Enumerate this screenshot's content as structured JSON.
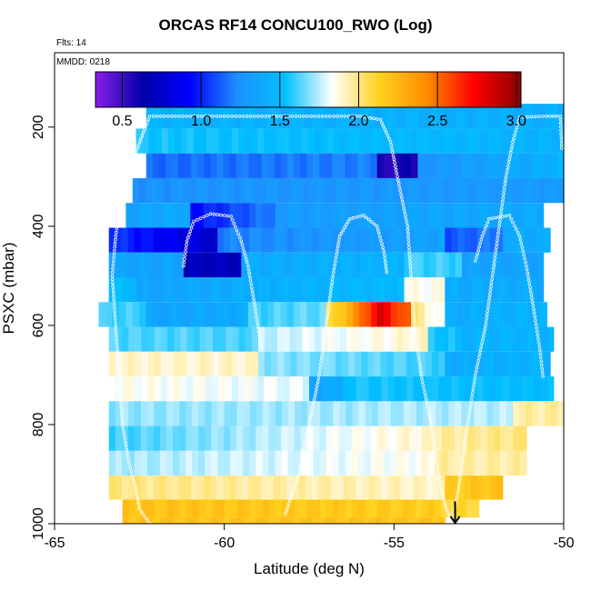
{
  "chart_data": {
    "type": "heatmap",
    "title": "ORCAS RF14 CONCU100_RWO (Log)",
    "flights_label": "Flts: 14",
    "date_label": "MMDD: 0218",
    "xlabel": "Latitude (deg N)",
    "ylabel": "PSXC (mbar)",
    "xlim": [
      -65,
      -50
    ],
    "ylim": [
      1000,
      50
    ],
    "x_ticks": [
      -65,
      -60,
      -55,
      -50
    ],
    "x_tick_labels": [
      "-65",
      "-60",
      "-55",
      "-50"
    ],
    "y_ticks": [
      200,
      400,
      600,
      800,
      1000
    ],
    "y_tick_labels": [
      "200",
      "400",
      "600",
      "800",
      "1000"
    ],
    "colorbar": {
      "range": [
        0.33,
        3.03
      ],
      "ticks": [
        0.5,
        1.0,
        1.5,
        2.0,
        2.5,
        3.0
      ],
      "tick_labels": [
        "0.5",
        "1.0",
        "1.5",
        "2.0",
        "2.5",
        "3.0"
      ],
      "colors": [
        "#8b1ee8",
        "#0000a8",
        "#0000ff",
        "#1e90ff",
        "#00bfff",
        "#ffffff",
        "#ffd21e",
        "#ff8c00",
        "#ff0000",
        "#8b0000"
      ]
    },
    "rows": [
      {
        "p": 178,
        "segments": [
          {
            "x": [
              -62.3,
              -50
            ],
            "v": [
              1.45,
              1.42
            ]
          }
        ]
      },
      {
        "p": 228,
        "segments": [
          {
            "x": [
              -62.6,
              -50
            ],
            "v": [
              1.55,
              1.45
            ]
          }
        ]
      },
      {
        "p": 278,
        "segments": [
          {
            "x": [
              -62.3,
              -55.5
            ],
            "v": [
              1.15,
              1.2
            ]
          },
          {
            "x": [
              -55.5,
              -54.3
            ],
            "v": [
              0.55,
              0.6
            ]
          },
          {
            "x": [
              -54.3,
              -50
            ],
            "v": [
              1.25,
              1.45
            ]
          }
        ]
      },
      {
        "p": 328,
        "segments": [
          {
            "x": [
              -62.7,
              -50
            ],
            "v": [
              1.25,
              1.3
            ]
          }
        ]
      },
      {
        "p": 378,
        "segments": [
          {
            "x": [
              -62.9,
              -61.0
            ],
            "v": [
              1.35,
              1.4
            ]
          },
          {
            "x": [
              -61.0,
              -58.5
            ],
            "v": [
              0.95,
              1.2
            ]
          },
          {
            "x": [
              -58.5,
              -50.6
            ],
            "v": [
              1.3,
              1.4
            ]
          }
        ]
      },
      {
        "p": 428,
        "segments": [
          {
            "x": [
              -63.4,
              -60.2
            ],
            "v": [
              1.05,
              0.75
            ]
          },
          {
            "x": [
              -60.2,
              -53.5
            ],
            "v": [
              1.2,
              1.35
            ]
          },
          {
            "x": [
              -53.5,
              -51.8
            ],
            "v": [
              1.1,
              1.2
            ]
          },
          {
            "x": [
              -51.8,
              -50.4
            ],
            "v": [
              1.4,
              1.4
            ]
          }
        ]
      },
      {
        "p": 478,
        "segments": [
          {
            "x": [
              -63.4,
              -61.2
            ],
            "v": [
              1.35,
              1.35
            ]
          },
          {
            "x": [
              -61.2,
              -59.5
            ],
            "v": [
              0.7,
              0.7
            ]
          },
          {
            "x": [
              -59.5,
              -54.7
            ],
            "v": [
              1.4,
              1.45
            ]
          },
          {
            "x": [
              -54.7,
              -53.0
            ],
            "v": [
              1.6,
              1.6
            ]
          },
          {
            "x": [
              -53.0,
              -50.6
            ],
            "v": [
              1.35,
              1.35
            ]
          }
        ]
      },
      {
        "p": 528,
        "segments": [
          {
            "x": [
              -63.4,
              -62.6
            ],
            "v": [
              1.5,
              1.5
            ]
          },
          {
            "x": [
              -62.6,
              -54.7
            ],
            "v": [
              1.35,
              1.5
            ]
          },
          {
            "x": [
              -54.7,
              -53.5
            ],
            "v": [
              1.85,
              1.85
            ]
          },
          {
            "x": [
              -53.5,
              -50.6
            ],
            "v": [
              1.4,
              1.4
            ]
          }
        ]
      },
      {
        "p": 578,
        "segments": [
          {
            "x": [
              -63.7,
              -62.3
            ],
            "v": [
              1.6,
              1.6
            ]
          },
          {
            "x": [
              -62.3,
              -59.3
            ],
            "v": [
              1.35,
              1.4
            ]
          },
          {
            "x": [
              -59.3,
              -57.0
            ],
            "v": [
              1.6,
              1.65
            ]
          },
          {
            "x": [
              -57.0,
              -56.2
            ],
            "v": [
              2.05,
              2.3
            ]
          },
          {
            "x": [
              -56.2,
              -55.5
            ],
            "v": [
              2.4,
              2.7
            ]
          },
          {
            "x": [
              -55.5,
              -54.5
            ],
            "v": [
              2.8,
              2.5
            ]
          },
          {
            "x": [
              -54.5,
              -53.5
            ],
            "v": [
              2.0,
              1.8
            ]
          },
          {
            "x": [
              -53.5,
              -50.5
            ],
            "v": [
              1.4,
              1.45
            ]
          }
        ]
      },
      {
        "p": 628,
        "segments": [
          {
            "x": [
              -63.4,
              -59.0
            ],
            "v": [
              1.62,
              1.62
            ]
          },
          {
            "x": [
              -59.0,
              -54.0
            ],
            "v": [
              1.75,
              1.9
            ]
          },
          {
            "x": [
              -54.0,
              -53.2
            ],
            "v": [
              1.55,
              1.55
            ]
          },
          {
            "x": [
              -53.2,
              -50.3
            ],
            "v": [
              1.45,
              1.45
            ]
          }
        ]
      },
      {
        "p": 678,
        "segments": [
          {
            "x": [
              -63.4,
              -59.0
            ],
            "v": [
              1.9,
              1.9
            ]
          },
          {
            "x": [
              -59.0,
              -53.5
            ],
            "v": [
              1.7,
              1.6
            ]
          },
          {
            "x": [
              -53.5,
              -50.4
            ],
            "v": [
              1.4,
              1.45
            ]
          }
        ]
      },
      {
        "p": 728,
        "segments": [
          {
            "x": [
              -63.4,
              -57.5
            ],
            "v": [
              1.85,
              1.8
            ]
          },
          {
            "x": [
              -57.5,
              -56.5
            ],
            "v": [
              1.35,
              1.4
            ]
          },
          {
            "x": [
              -56.5,
              -50.3
            ],
            "v": [
              1.55,
              1.5
            ]
          }
        ]
      },
      {
        "p": 778,
        "segments": [
          {
            "x": [
              -63.4,
              -50
            ],
            "v": [
              1.7,
              1.75
            ]
          },
          {
            "x": [
              -51.5,
              -50
            ],
            "v": [
              1.95,
              1.95
            ]
          }
        ]
      },
      {
        "p": 828,
        "segments": [
          {
            "x": [
              -63.4,
              -53.8
            ],
            "v": [
              1.6,
              1.9
            ]
          },
          {
            "x": [
              -53.8,
              -51.1
            ],
            "v": [
              1.95,
              2.0
            ]
          }
        ]
      },
      {
        "p": 878,
        "segments": [
          {
            "x": [
              -63.4,
              -53.8
            ],
            "v": [
              1.72,
              1.85
            ]
          },
          {
            "x": [
              -53.8,
              -51.1
            ],
            "v": [
              1.95,
              1.95
            ]
          }
        ]
      },
      {
        "p": 928,
        "segments": [
          {
            "x": [
              -63.4,
              -53.5
            ],
            "v": [
              2.0,
              1.9
            ]
          },
          {
            "x": [
              -53.5,
              -51.8
            ],
            "v": [
              2.15,
              2.2
            ]
          }
        ]
      },
      {
        "p": 975,
        "segments": [
          {
            "x": [
              -63.0,
              -53.8
            ],
            "v": [
              2.2,
              2.15
            ]
          },
          {
            "x": [
              -53.8,
              -52.5
            ],
            "v": [
              2.1,
              2.1
            ]
          }
        ]
      },
      {
        "p": 1000,
        "segments": [
          {
            "x": [
              -63.0,
              -53.5
            ],
            "v": [
              2.2,
              2.2
            ]
          }
        ]
      }
    ],
    "flight_track": [
      [
        -62.2,
        1000
      ],
      [
        -62.5,
        970
      ],
      [
        -62.6,
        930
      ],
      [
        -62.8,
        880
      ],
      [
        -63.0,
        800
      ],
      [
        -63.1,
        700
      ],
      [
        -63.2,
        600
      ],
      [
        -63.3,
        500
      ],
      [
        -63.2,
        420
      ],
      [
        -63.0,
        330
      ],
      [
        -62.6,
        250
      ],
      [
        -62.2,
        178
      ],
      [
        -61,
        178
      ],
      [
        -60,
        178
      ],
      [
        -59,
        178
      ],
      [
        -58,
        178
      ],
      [
        -57,
        178
      ],
      [
        -56,
        178
      ],
      [
        -55.4,
        185
      ],
      [
        -55.1,
        230
      ],
      [
        -54.9,
        300
      ],
      [
        -54.6,
        400
      ],
      [
        -54.5,
        500
      ],
      [
        -54.4,
        600
      ],
      [
        -54.2,
        700
      ],
      [
        -53.9,
        800
      ],
      [
        -53.7,
        900
      ],
      [
        -53.5,
        960
      ],
      [
        -53.3,
        1000
      ],
      [
        -53.1,
        930
      ],
      [
        -52.9,
        830
      ],
      [
        -52.6,
        700
      ],
      [
        -52.3,
        600
      ],
      [
        -52.1,
        500
      ],
      [
        -51.9,
        400
      ],
      [
        -51.7,
        300
      ],
      [
        -51.5,
        230
      ],
      [
        -51.3,
        180
      ],
      [
        -50.5,
        178
      ],
      [
        -50.1,
        178
      ],
      [
        -50.05,
        250
      ]
    ],
    "secondary_tracks": [
      [
        [
          -61.2,
          480
        ],
        [
          -61.1,
          430
        ],
        [
          -60.9,
          390
        ],
        [
          -60.4,
          375
        ],
        [
          -59.8,
          380
        ],
        [
          -59.5,
          430
        ],
        [
          -59.3,
          480
        ],
        [
          -59.1,
          560
        ],
        [
          -58.9,
          650
        ]
      ],
      [
        [
          -58.2,
          980
        ],
        [
          -57.8,
          900
        ],
        [
          -57.5,
          800
        ],
        [
          -57.2,
          700
        ],
        [
          -57.0,
          600
        ],
        [
          -56.8,
          500
        ],
        [
          -56.6,
          420
        ],
        [
          -56.3,
          385
        ],
        [
          -55.9,
          378
        ],
        [
          -55.5,
          400
        ],
        [
          -55.3,
          450
        ],
        [
          -55.2,
          500
        ]
      ],
      [
        [
          -52.6,
          470
        ],
        [
          -52.4,
          420
        ],
        [
          -52.2,
          385
        ],
        [
          -51.6,
          378
        ],
        [
          -51.3,
          420
        ],
        [
          -51.1,
          480
        ],
        [
          -50.9,
          560
        ],
        [
          -50.7,
          650
        ],
        [
          -50.6,
          710
        ]
      ]
    ],
    "arrow_marker": {
      "x": -53.2,
      "p_from": 955,
      "p_to": 1000
    }
  }
}
